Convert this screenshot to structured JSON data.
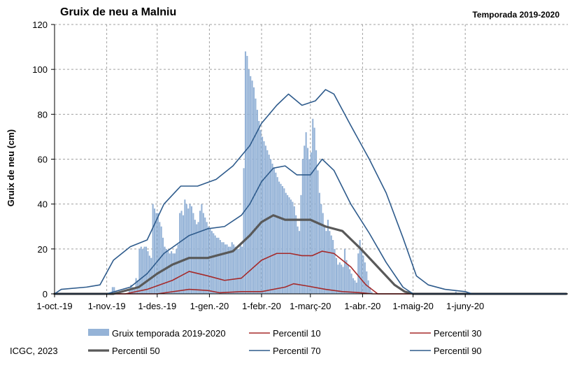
{
  "header": {
    "title": "Gruix de neu a Malniu",
    "subtitle": "Temporada 2019-2020"
  },
  "footer": {
    "credit": "ICGC, 2023"
  },
  "chart_data": {
    "type": "bar",
    "title": "Gruix de neu a Malniu",
    "subtitle": "Temporada 2019-2020",
    "ylabel": "Gruix de neu (cm)",
    "xlabel": "",
    "ylim": [
      0,
      120
    ],
    "yticks": [
      0,
      20,
      40,
      60,
      80,
      100,
      120
    ],
    "xlim": [
      "2019-10-01",
      "2020-07-31"
    ],
    "xticks": [
      {
        "date": "2019-10-01",
        "label": "1-oct.-19"
      },
      {
        "date": "2019-11-01",
        "label": "1-nov.-19"
      },
      {
        "date": "2019-12-01",
        "label": "1-des.-19"
      },
      {
        "date": "2020-01-01",
        "label": "1-gen.-20"
      },
      {
        "date": "2020-02-01",
        "label": "1-febr.-20"
      },
      {
        "date": "2020-03-01",
        "label": "1-març-20"
      },
      {
        "date": "2020-04-01",
        "label": "1-abr.-20"
      },
      {
        "date": "2020-05-01",
        "label": "1-maig-20"
      },
      {
        "date": "2020-06-01",
        "label": "1-juny-20"
      }
    ],
    "grid": true,
    "legend_position": "bottom",
    "colors": {
      "bars": "#95b3d7",
      "p10": "#a52a2a",
      "p30": "#a52a2a",
      "p50": "#595959",
      "p70": "#2e5b8c",
      "p90": "#2e5b8c"
    },
    "bars": {
      "name": "Gruix temporada 2019-2020",
      "points": [
        [
          "2019-11-04",
          3
        ],
        [
          "2019-11-05",
          3
        ],
        [
          "2019-11-06",
          1
        ],
        [
          "2019-11-14",
          2
        ],
        [
          "2019-11-15",
          4
        ],
        [
          "2019-11-16",
          3
        ],
        [
          "2019-11-17",
          2
        ],
        [
          "2019-11-18",
          7
        ],
        [
          "2019-11-19",
          6
        ],
        [
          "2019-11-20",
          20
        ],
        [
          "2019-11-21",
          21
        ],
        [
          "2019-11-22",
          20
        ],
        [
          "2019-11-23",
          21
        ],
        [
          "2019-11-24",
          21
        ],
        [
          "2019-11-25",
          19
        ],
        [
          "2019-11-26",
          17
        ],
        [
          "2019-11-27",
          16
        ],
        [
          "2019-11-28",
          40
        ],
        [
          "2019-11-29",
          38
        ],
        [
          "2019-11-30",
          36
        ],
        [
          "2019-12-01",
          36
        ],
        [
          "2019-12-02",
          32
        ],
        [
          "2019-12-03",
          30
        ],
        [
          "2019-12-04",
          25
        ],
        [
          "2019-12-05",
          21
        ],
        [
          "2019-12-06",
          20
        ],
        [
          "2019-12-07",
          19
        ],
        [
          "2019-12-08",
          18
        ],
        [
          "2019-12-09",
          19
        ],
        [
          "2019-12-10",
          18
        ],
        [
          "2019-12-11",
          18
        ],
        [
          "2019-12-12",
          20
        ],
        [
          "2019-12-13",
          22
        ],
        [
          "2019-12-14",
          36
        ],
        [
          "2019-12-15",
          37
        ],
        [
          "2019-12-16",
          35
        ],
        [
          "2019-12-17",
          42
        ],
        [
          "2019-12-18",
          40
        ],
        [
          "2019-12-19",
          38
        ],
        [
          "2019-12-20",
          40
        ],
        [
          "2019-12-21",
          39
        ],
        [
          "2019-12-22",
          36
        ],
        [
          "2019-12-23",
          33
        ],
        [
          "2019-12-24",
          31
        ],
        [
          "2019-12-25",
          32
        ],
        [
          "2019-12-26",
          37
        ],
        [
          "2019-12-27",
          40
        ],
        [
          "2019-12-28",
          36
        ],
        [
          "2019-12-29",
          34
        ],
        [
          "2019-12-30",
          32
        ],
        [
          "2019-12-31",
          30
        ],
        [
          "2020-01-01",
          29
        ],
        [
          "2020-01-02",
          28
        ],
        [
          "2020-01-03",
          27
        ],
        [
          "2020-01-04",
          26
        ],
        [
          "2020-01-05",
          25
        ],
        [
          "2020-01-06",
          25
        ],
        [
          "2020-01-07",
          24
        ],
        [
          "2020-01-08",
          23
        ],
        [
          "2020-01-09",
          23
        ],
        [
          "2020-01-10",
          22
        ],
        [
          "2020-01-11",
          22
        ],
        [
          "2020-01-12",
          21
        ],
        [
          "2020-01-13",
          21
        ],
        [
          "2020-01-14",
          23
        ],
        [
          "2020-01-15",
          22
        ],
        [
          "2020-01-16",
          21
        ],
        [
          "2020-01-17",
          20
        ],
        [
          "2020-01-18",
          20
        ],
        [
          "2020-01-19",
          22
        ],
        [
          "2020-01-20",
          21
        ],
        [
          "2020-01-21",
          56
        ],
        [
          "2020-01-22",
          108
        ],
        [
          "2020-01-23",
          106
        ],
        [
          "2020-01-24",
          100
        ],
        [
          "2020-01-25",
          97
        ],
        [
          "2020-01-26",
          95
        ],
        [
          "2020-01-27",
          92
        ],
        [
          "2020-01-28",
          87
        ],
        [
          "2020-01-29",
          82
        ],
        [
          "2020-01-30",
          77
        ],
        [
          "2020-01-31",
          73
        ],
        [
          "2020-02-01",
          70
        ],
        [
          "2020-02-02",
          68
        ],
        [
          "2020-02-03",
          66
        ],
        [
          "2020-02-04",
          64
        ],
        [
          "2020-02-05",
          62
        ],
        [
          "2020-02-06",
          60
        ],
        [
          "2020-02-07",
          58
        ],
        [
          "2020-02-08",
          56
        ],
        [
          "2020-02-09",
          54
        ],
        [
          "2020-02-10",
          52
        ],
        [
          "2020-02-11",
          50
        ],
        [
          "2020-02-12",
          49
        ],
        [
          "2020-02-13",
          48
        ],
        [
          "2020-02-14",
          47
        ],
        [
          "2020-02-15",
          45
        ],
        [
          "2020-02-16",
          44
        ],
        [
          "2020-02-17",
          43
        ],
        [
          "2020-02-18",
          42
        ],
        [
          "2020-02-19",
          41
        ],
        [
          "2020-02-20",
          39
        ],
        [
          "2020-02-21",
          35
        ],
        [
          "2020-02-22",
          30
        ],
        [
          "2020-02-23",
          28
        ],
        [
          "2020-02-24",
          44
        ],
        [
          "2020-02-25",
          60
        ],
        [
          "2020-02-26",
          66
        ],
        [
          "2020-02-27",
          72
        ],
        [
          "2020-02-28",
          65
        ],
        [
          "2020-02-29",
          60
        ],
        [
          "2020-03-01",
          63
        ],
        [
          "2020-03-02",
          78
        ],
        [
          "2020-03-03",
          74
        ],
        [
          "2020-03-04",
          64
        ],
        [
          "2020-03-05",
          55
        ],
        [
          "2020-03-06",
          45
        ],
        [
          "2020-03-07",
          40
        ],
        [
          "2020-03-08",
          36
        ],
        [
          "2020-03-09",
          30
        ],
        [
          "2020-03-10",
          28
        ],
        [
          "2020-03-11",
          33
        ],
        [
          "2020-03-12",
          28
        ],
        [
          "2020-03-13",
          26
        ],
        [
          "2020-03-14",
          24
        ],
        [
          "2020-03-15",
          20
        ],
        [
          "2020-03-16",
          16
        ],
        [
          "2020-03-17",
          13
        ],
        [
          "2020-03-18",
          14
        ],
        [
          "2020-03-19",
          13
        ],
        [
          "2020-03-20",
          12
        ],
        [
          "2020-03-21",
          20
        ],
        [
          "2020-03-22",
          15
        ],
        [
          "2020-03-23",
          13
        ],
        [
          "2020-03-24",
          11
        ],
        [
          "2020-03-25",
          9
        ],
        [
          "2020-03-26",
          7
        ],
        [
          "2020-03-27",
          6
        ],
        [
          "2020-03-28",
          5
        ],
        [
          "2020-03-29",
          18
        ],
        [
          "2020-03-30",
          24
        ],
        [
          "2020-03-31",
          20
        ],
        [
          "2020-04-01",
          17
        ],
        [
          "2020-04-02",
          14
        ],
        [
          "2020-04-03",
          10
        ],
        [
          "2020-04-04",
          6
        ],
        [
          "2020-04-05",
          3
        ],
        [
          "2020-04-06",
          1
        ],
        [
          "2020-05-26",
          1
        ]
      ]
    },
    "series": [
      {
        "name": "Percentil 10",
        "style": "p10",
        "points": [
          [
            "2019-10-01",
            0
          ],
          [
            "2019-12-01",
            0
          ],
          [
            "2019-12-20",
            2
          ],
          [
            "2019-12-31",
            1.5
          ],
          [
            "2020-01-07",
            0.5
          ],
          [
            "2020-01-20",
            1
          ],
          [
            "2020-02-01",
            1
          ],
          [
            "2020-02-15",
            3
          ],
          [
            "2020-02-20",
            4.5
          ],
          [
            "2020-02-28",
            3.5
          ],
          [
            "2020-03-10",
            2
          ],
          [
            "2020-03-20",
            1
          ],
          [
            "2020-03-31",
            0.5
          ],
          [
            "2020-04-07",
            0
          ],
          [
            "2020-07-31",
            0
          ]
        ]
      },
      {
        "name": "Percentil 30",
        "style": "p30",
        "points": [
          [
            "2019-10-01",
            0
          ],
          [
            "2019-11-12",
            0
          ],
          [
            "2019-11-25",
            2
          ],
          [
            "2019-12-10",
            6
          ],
          [
            "2019-12-20",
            10
          ],
          [
            "2019-12-31",
            8
          ],
          [
            "2020-01-10",
            6
          ],
          [
            "2020-01-20",
            7
          ],
          [
            "2020-02-01",
            15
          ],
          [
            "2020-02-10",
            18
          ],
          [
            "2020-02-18",
            18
          ],
          [
            "2020-02-25",
            17
          ],
          [
            "2020-03-02",
            17
          ],
          [
            "2020-03-08",
            19
          ],
          [
            "2020-03-15",
            18
          ],
          [
            "2020-03-25",
            12
          ],
          [
            "2020-04-03",
            4
          ],
          [
            "2020-04-10",
            0
          ],
          [
            "2020-07-31",
            0
          ]
        ]
      },
      {
        "name": "Percentil 50",
        "style": "p50",
        "points": [
          [
            "2019-10-01",
            0
          ],
          [
            "2019-11-05",
            0
          ],
          [
            "2019-11-20",
            3
          ],
          [
            "2019-12-01",
            9
          ],
          [
            "2019-12-10",
            13
          ],
          [
            "2019-12-20",
            16
          ],
          [
            "2019-12-31",
            16
          ],
          [
            "2020-01-05",
            17
          ],
          [
            "2020-01-15",
            19
          ],
          [
            "2020-01-25",
            26
          ],
          [
            "2020-02-01",
            32
          ],
          [
            "2020-02-08",
            35
          ],
          [
            "2020-02-15",
            33
          ],
          [
            "2020-02-22",
            33
          ],
          [
            "2020-03-01",
            33
          ],
          [
            "2020-03-10",
            30
          ],
          [
            "2020-03-20",
            28
          ],
          [
            "2020-03-31",
            20
          ],
          [
            "2020-04-10",
            12
          ],
          [
            "2020-04-20",
            4
          ],
          [
            "2020-04-26",
            1
          ],
          [
            "2020-05-01",
            0
          ],
          [
            "2020-07-31",
            0
          ]
        ]
      },
      {
        "name": "Percentil 70",
        "style": "p70",
        "points": [
          [
            "2019-10-01",
            0
          ],
          [
            "2019-11-01",
            0
          ],
          [
            "2019-11-15",
            3
          ],
          [
            "2019-11-25",
            9
          ],
          [
            "2019-12-05",
            18
          ],
          [
            "2019-12-20",
            26
          ],
          [
            "2019-12-31",
            29
          ],
          [
            "2020-01-10",
            30
          ],
          [
            "2020-01-20",
            35
          ],
          [
            "2020-01-25",
            40
          ],
          [
            "2020-02-01",
            50
          ],
          [
            "2020-02-08",
            56
          ],
          [
            "2020-02-15",
            57
          ],
          [
            "2020-02-22",
            53
          ],
          [
            "2020-03-01",
            53
          ],
          [
            "2020-03-08",
            60
          ],
          [
            "2020-03-15",
            55
          ],
          [
            "2020-03-25",
            40
          ],
          [
            "2020-04-05",
            27
          ],
          [
            "2020-04-15",
            14
          ],
          [
            "2020-04-25",
            3
          ],
          [
            "2020-05-01",
            0
          ],
          [
            "2020-07-31",
            0
          ]
        ]
      },
      {
        "name": "Percentil 90",
        "style": "p90",
        "points": [
          [
            "2019-10-01",
            0
          ],
          [
            "2019-10-05",
            2
          ],
          [
            "2019-10-20",
            3
          ],
          [
            "2019-10-28",
            4
          ],
          [
            "2019-11-05",
            15
          ],
          [
            "2019-11-15",
            21
          ],
          [
            "2019-11-25",
            24
          ],
          [
            "2019-12-05",
            40
          ],
          [
            "2019-12-15",
            48
          ],
          [
            "2019-12-25",
            48
          ],
          [
            "2020-01-05",
            51
          ],
          [
            "2020-01-15",
            57
          ],
          [
            "2020-01-25",
            66
          ],
          [
            "2020-02-01",
            76
          ],
          [
            "2020-02-10",
            84
          ],
          [
            "2020-02-17",
            89
          ],
          [
            "2020-02-25",
            84
          ],
          [
            "2020-03-04",
            86
          ],
          [
            "2020-03-10",
            91
          ],
          [
            "2020-03-15",
            89
          ],
          [
            "2020-03-25",
            75
          ],
          [
            "2020-04-05",
            60
          ],
          [
            "2020-04-15",
            45
          ],
          [
            "2020-04-25",
            25
          ],
          [
            "2020-05-03",
            8
          ],
          [
            "2020-05-10",
            4
          ],
          [
            "2020-05-20",
            2
          ],
          [
            "2020-06-01",
            1
          ],
          [
            "2020-06-05",
            0
          ],
          [
            "2020-07-31",
            0
          ]
        ]
      }
    ],
    "legend": [
      {
        "label": "Gruix temporada 2019-2020",
        "style": "bars"
      },
      {
        "label": "Percentil 10",
        "style": "p10"
      },
      {
        "label": "Percentil 30",
        "style": "p30"
      },
      {
        "label": "Percentil 50",
        "style": "p50"
      },
      {
        "label": "Percentil 70",
        "style": "p70"
      },
      {
        "label": "Percentil 90",
        "style": "p90"
      }
    ]
  }
}
